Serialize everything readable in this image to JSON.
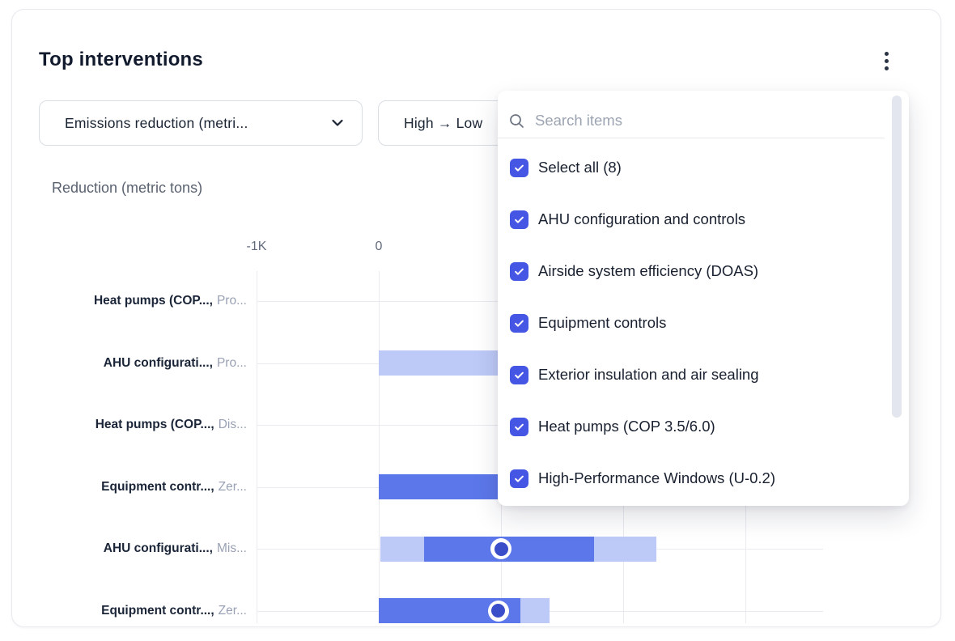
{
  "card": {
    "title": "Top interventions"
  },
  "filters": {
    "metric": "Emissions reduction (metri...",
    "sort": "High → Low"
  },
  "dropdown": {
    "search_placeholder": "Search items",
    "items": [
      {
        "label": "Select all (8)",
        "checked": true
      },
      {
        "label": "AHU configuration and controls",
        "checked": true
      },
      {
        "label": "Airside system efficiency (DOAS)",
        "checked": true
      },
      {
        "label": "Equipment controls",
        "checked": true
      },
      {
        "label": "Exterior insulation and air sealing",
        "checked": true
      },
      {
        "label": "Heat pumps (COP 3.5/6.0)",
        "checked": true
      },
      {
        "label": "High-Performance Windows (U-0.2)",
        "checked": true
      }
    ]
  },
  "chart_data": {
    "type": "bar",
    "orientation": "horizontal",
    "title": "Reduction (metric tons)",
    "x_unit": "metric tons",
    "x_ticks": [
      {
        "label": "-1K",
        "value": -1000
      },
      {
        "label": "0",
        "value": 0
      }
    ],
    "x_gridlines": [
      -1000,
      0,
      1000,
      2000,
      3000
    ],
    "xlim_visible": [
      -1000,
      3640
    ],
    "grid": true,
    "rows": [
      {
        "label": "Heat pumps (COP...,",
        "sublabel": "Pro...",
        "segments": [],
        "marker": null
      },
      {
        "label": "AHU configurati...,",
        "sublabel": "Pro...",
        "segments": [
          {
            "shade": "light",
            "from": 0,
            "to": 1500,
            "end_hidden_behind_dropdown": true
          }
        ],
        "marker": null
      },
      {
        "label": "Heat pumps (COP...,",
        "sublabel": "Dis...",
        "segments": [],
        "marker": null
      },
      {
        "label": "Equipment contr...,",
        "sublabel": "Zer...",
        "segments": [
          {
            "shade": "solid",
            "from": 0,
            "to": 1150,
            "end_hidden_behind_dropdown": true
          }
        ],
        "marker": null
      },
      {
        "label": "AHU configurati...,",
        "sublabel": "Mis...",
        "segments": [
          {
            "shade": "light",
            "from": 10,
            "to": 370
          },
          {
            "shade": "solid",
            "from": 370,
            "to": 1760
          },
          {
            "shade": "light",
            "from": 1760,
            "to": 2270
          }
        ],
        "marker": 1000
      },
      {
        "label": "Equipment contr...,",
        "sublabel": "Zer...",
        "segments": [
          {
            "shade": "solid",
            "from": 0,
            "to": 1160
          },
          {
            "shade": "light",
            "from": 1160,
            "to": 1400
          }
        ],
        "marker": 980
      }
    ],
    "colors": {
      "solid": "#5C77E9",
      "light": "#BDC9F7",
      "marker_fill": "#3B4EC9",
      "marker_ring": "#FFFFFF",
      "checkbox": "#4456E3",
      "gridline": "#E9EBF1"
    }
  }
}
